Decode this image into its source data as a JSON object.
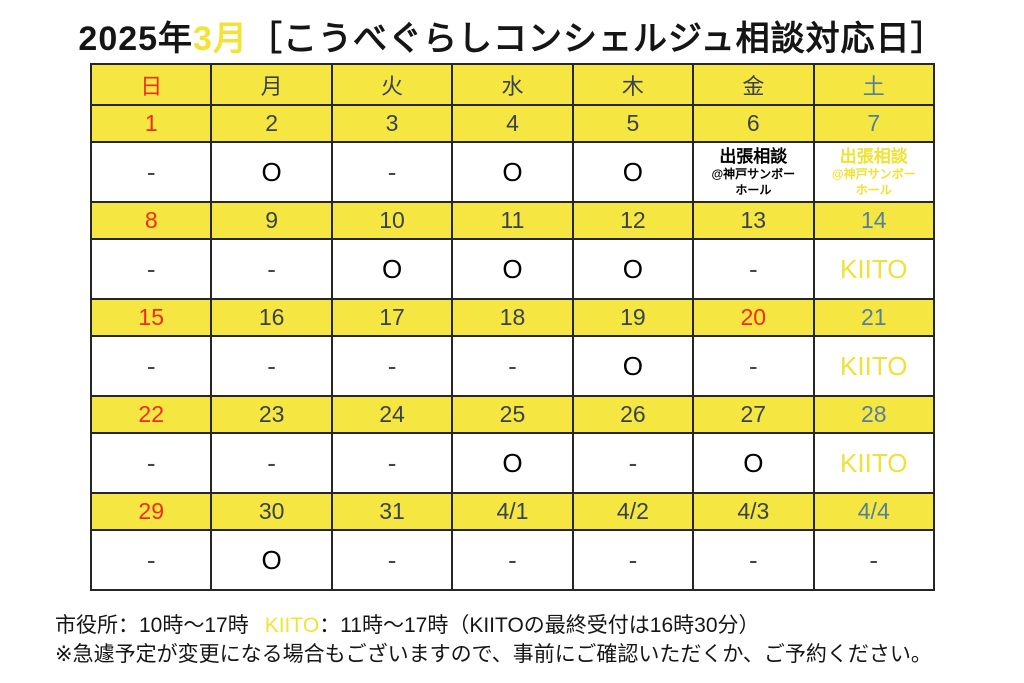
{
  "title": {
    "year": "2025年",
    "month": "3月",
    "subtitle": "［こうべぐらしコンシェルジュ相談対応日］"
  },
  "colors": {
    "highlight_yellow": "#f5e642",
    "unavailable_gray": "#d9d9d9",
    "sunday_red": "#ee2e1d",
    "saturday_blue": "#53809c",
    "weekday_dark": "#39434e",
    "kiito_yellow_text": "#eee13a"
  },
  "calendar": {
    "day_headers": [
      {
        "label": "日",
        "type": "sun"
      },
      {
        "label": "月",
        "type": "weekday"
      },
      {
        "label": "火",
        "type": "weekday"
      },
      {
        "label": "水",
        "type": "weekday"
      },
      {
        "label": "木",
        "type": "weekday"
      },
      {
        "label": "金",
        "type": "weekday"
      },
      {
        "label": "土",
        "type": "sat"
      }
    ],
    "weeks": [
      {
        "dates": [
          {
            "label": "1",
            "type": "sun"
          },
          {
            "label": "2",
            "type": "weekday"
          },
          {
            "label": "3",
            "type": "weekday"
          },
          {
            "label": "4",
            "type": "weekday"
          },
          {
            "label": "5",
            "type": "weekday"
          },
          {
            "label": "6",
            "type": "weekday"
          },
          {
            "label": "7",
            "type": "sat"
          }
        ],
        "availability": [
          {
            "value": "-",
            "variant": "unavailable"
          },
          {
            "value": "O",
            "variant": "available"
          },
          {
            "value": "-",
            "variant": "unavailable"
          },
          {
            "value": "O",
            "variant": "available"
          },
          {
            "value": "O",
            "variant": "available"
          },
          {
            "lines": [
              "出張相談",
              "@神戸サンボー",
              "ホール"
            ],
            "variant": "trip-black"
          },
          {
            "lines": [
              "出張相談",
              "@神戸サンボー",
              "ホール"
            ],
            "variant": "trip-yellow"
          }
        ]
      },
      {
        "dates": [
          {
            "label": "8",
            "type": "sun"
          },
          {
            "label": "9",
            "type": "weekday"
          },
          {
            "label": "10",
            "type": "weekday"
          },
          {
            "label": "11",
            "type": "weekday"
          },
          {
            "label": "12",
            "type": "weekday"
          },
          {
            "label": "13",
            "type": "weekday"
          },
          {
            "label": "14",
            "type": "sat"
          }
        ],
        "availability": [
          {
            "value": "-",
            "variant": "unavailable"
          },
          {
            "value": "-",
            "variant": "unavailable"
          },
          {
            "value": "O",
            "variant": "available"
          },
          {
            "value": "O",
            "variant": "available"
          },
          {
            "value": "O",
            "variant": "available"
          },
          {
            "value": "-",
            "variant": "unavailable"
          },
          {
            "value": "KIITO",
            "variant": "kiito"
          }
        ]
      },
      {
        "dates": [
          {
            "label": "15",
            "type": "sun"
          },
          {
            "label": "16",
            "type": "weekday"
          },
          {
            "label": "17",
            "type": "weekday"
          },
          {
            "label": "18",
            "type": "weekday"
          },
          {
            "label": "19",
            "type": "weekday"
          },
          {
            "label": "20",
            "type": "holiday"
          },
          {
            "label": "21",
            "type": "sat"
          }
        ],
        "availability": [
          {
            "value": "-",
            "variant": "unavailable"
          },
          {
            "value": "-",
            "variant": "unavailable"
          },
          {
            "value": "-",
            "variant": "unavailable"
          },
          {
            "value": "-",
            "variant": "unavailable"
          },
          {
            "value": "O",
            "variant": "available"
          },
          {
            "value": "-",
            "variant": "unavailable"
          },
          {
            "value": "KIITO",
            "variant": "kiito"
          }
        ]
      },
      {
        "dates": [
          {
            "label": "22",
            "type": "sun"
          },
          {
            "label": "23",
            "type": "weekday"
          },
          {
            "label": "24",
            "type": "weekday"
          },
          {
            "label": "25",
            "type": "weekday"
          },
          {
            "label": "26",
            "type": "weekday"
          },
          {
            "label": "27",
            "type": "weekday"
          },
          {
            "label": "28",
            "type": "sat"
          }
        ],
        "availability": [
          {
            "value": "-",
            "variant": "unavailable"
          },
          {
            "value": "-",
            "variant": "unavailable"
          },
          {
            "value": "-",
            "variant": "unavailable"
          },
          {
            "value": "O",
            "variant": "available"
          },
          {
            "value": "-",
            "variant": "unavailable"
          },
          {
            "value": "O",
            "variant": "available"
          },
          {
            "value": "KIITO",
            "variant": "kiito"
          }
        ]
      },
      {
        "dates": [
          {
            "label": "29",
            "type": "sun"
          },
          {
            "label": "30",
            "type": "weekday"
          },
          {
            "label": "31",
            "type": "weekday"
          },
          {
            "label": "4/1",
            "type": "weekday"
          },
          {
            "label": "4/2",
            "type": "weekday"
          },
          {
            "label": "4/3",
            "type": "weekday"
          },
          {
            "label": "4/4",
            "type": "sat"
          }
        ],
        "availability": [
          {
            "value": "-",
            "variant": "unavailable"
          },
          {
            "value": "O",
            "variant": "available"
          },
          {
            "value": "-",
            "variant": "unavailable"
          },
          {
            "value": "-",
            "variant": "unavailable"
          },
          {
            "value": "-",
            "variant": "unavailable"
          },
          {
            "value": "-",
            "variant": "unavailable"
          },
          {
            "value": "-",
            "variant": "unavailable"
          }
        ]
      }
    ]
  },
  "footer": {
    "hours_city_hall": "市役所：10時～17時",
    "hours_kiito_label": "KIITO",
    "hours_kiito_rest": "：11時～17時（KIITOの最終受付は16時30分）",
    "note": "※急遽予定が変更になる場合もございますので、事前にご確認いただくか、ご予約ください。"
  }
}
